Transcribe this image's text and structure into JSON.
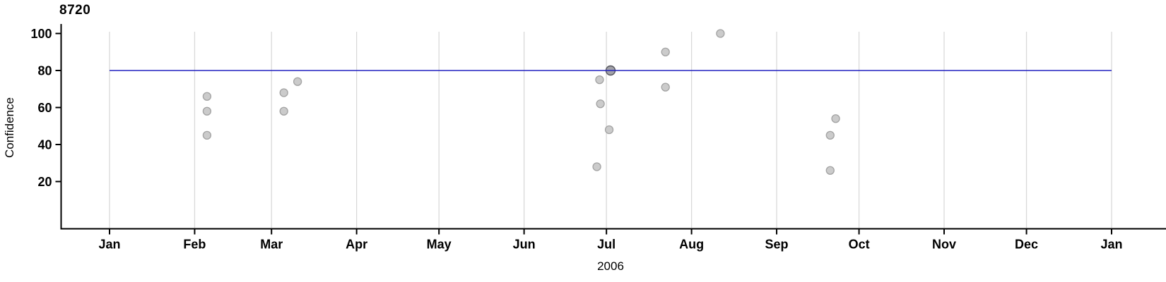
{
  "chart": {
    "title": "8720",
    "ylabel": "Confidence",
    "xlabel": "2006"
  },
  "chart_data": {
    "type": "scatter",
    "title": "8720",
    "xlabel": "2006",
    "ylabel": "Confidence",
    "x_axis": {
      "kind": "time",
      "year_label": "2006",
      "tick_labels": [
        "Jan",
        "Feb",
        "Mar",
        "Apr",
        "May",
        "Jun",
        "Jul",
        "Aug",
        "Sep",
        "Oct",
        "Nov",
        "Dec",
        "Jan"
      ],
      "tick_day_of_year": [
        0,
        31,
        59,
        90,
        120,
        151,
        181,
        212,
        243,
        273,
        304,
        334,
        365
      ],
      "range_day_of_year": [
        0,
        365
      ],
      "grid": true
    },
    "y_axis": {
      "label": "Confidence",
      "tick_values": [
        20,
        40,
        60,
        80,
        100
      ],
      "range": [
        -5,
        105
      ],
      "grid": false
    },
    "reference_line": {
      "value": 80,
      "orientation": "horizontal"
    },
    "points": [
      {
        "date": "2006-02-04",
        "day_of_year": 35.5,
        "confidence": 66
      },
      {
        "date": "2006-02-04",
        "day_of_year": 35.5,
        "confidence": 58
      },
      {
        "date": "2006-02-04",
        "day_of_year": 35.5,
        "confidence": 45
      },
      {
        "date": "2006-03-05",
        "day_of_year": 63.5,
        "confidence": 68
      },
      {
        "date": "2006-03-05",
        "day_of_year": 63.5,
        "confidence": 58
      },
      {
        "date": "2006-03-10",
        "day_of_year": 68.5,
        "confidence": 74
      },
      {
        "date": "2006-06-27",
        "day_of_year": 177.5,
        "confidence": 28
      },
      {
        "date": "2006-06-28",
        "day_of_year": 178.5,
        "confidence": 75
      },
      {
        "date": "2006-06-28",
        "day_of_year": 178.8,
        "confidence": 62
      },
      {
        "date": "2006-07-02",
        "day_of_year": 182.0,
        "confidence": 48
      },
      {
        "date": "2006-07-22",
        "day_of_year": 202.5,
        "confidence": 90
      },
      {
        "date": "2006-07-22",
        "day_of_year": 202.5,
        "confidence": 71
      },
      {
        "date": "2006-08-11",
        "day_of_year": 222.5,
        "confidence": 100
      },
      {
        "date": "2006-09-20",
        "day_of_year": 262.5,
        "confidence": 45
      },
      {
        "date": "2006-09-20",
        "day_of_year": 262.5,
        "confidence": 26
      },
      {
        "date": "2006-09-22",
        "day_of_year": 264.5,
        "confidence": 54
      }
    ],
    "highlighted_point": {
      "date": "2006-07-02",
      "day_of_year": 182.5,
      "confidence": 80
    },
    "colors": {
      "point_fill": "#cbcbcb",
      "point_stroke": "#a3a3a3",
      "highlight_fill": "#a2a2a8",
      "highlight_stroke": "#54545c",
      "reference_line": "#2020c0",
      "gridline": "#d9d9d9",
      "axis": "#000000",
      "text": "#000000"
    }
  }
}
